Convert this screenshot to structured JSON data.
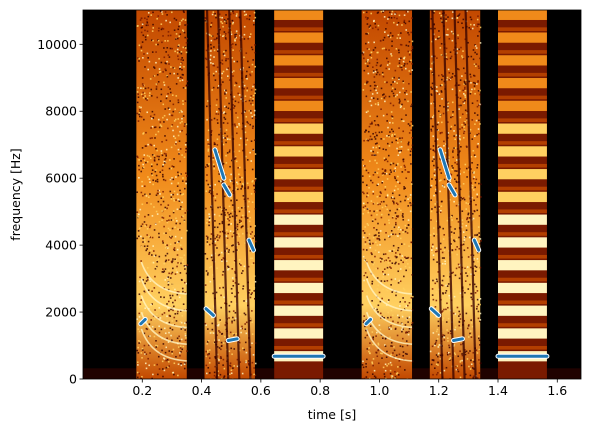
{
  "chart_data": {
    "type": "heatmap",
    "title": "",
    "xlabel": "time [s]",
    "ylabel": "frequency [Hz]",
    "xlim": [
      0.0,
      1.68
    ],
    "ylim": [
      0,
      11025
    ],
    "xticks": [
      0.2,
      0.4,
      0.6,
      0.8,
      1.0,
      1.2,
      1.4,
      1.6
    ],
    "xtick_labels": [
      "0.2",
      "0.4",
      "0.6",
      "0.8",
      "1.0",
      "1.2",
      "1.4",
      "1.6"
    ],
    "yticks": [
      0,
      2000,
      4000,
      6000,
      8000,
      10000
    ],
    "ytick_labels": [
      "0",
      "2000",
      "4000",
      "6000",
      "8000",
      "10000"
    ],
    "grid": false,
    "legend": "none",
    "colormap": [
      "#000000",
      "#3a0400",
      "#7a1a00",
      "#c24800",
      "#f08a1a",
      "#ffd060",
      "#fff4c0"
    ],
    "background_color": "#000000",
    "sound_segments": [
      {
        "kind": "noise",
        "t_start": 0.18,
        "t_end": 0.35
      },
      {
        "kind": "sweep",
        "t_start": 0.41,
        "t_end": 0.58
      },
      {
        "kind": "harmonic",
        "t_start": 0.645,
        "t_end": 0.81,
        "f0": 680
      },
      {
        "kind": "noise",
        "t_start": 0.94,
        "t_end": 1.11
      },
      {
        "kind": "sweep",
        "t_start": 1.17,
        "t_end": 1.34
      },
      {
        "kind": "harmonic",
        "t_start": 1.4,
        "t_end": 1.565,
        "f0": 680
      }
    ],
    "pitch_track_color": "#1f77b4",
    "pitch_track": [
      {
        "t": [
          0.195,
          0.21
        ],
        "f": [
          1650,
          1780
        ]
      },
      {
        "t": [
          0.415,
          0.44
        ],
        "f": [
          2100,
          1900
        ]
      },
      {
        "t": [
          0.445,
          0.475
        ],
        "f": [
          6850,
          6000
        ]
      },
      {
        "t": [
          0.475,
          0.495
        ],
        "f": [
          5800,
          5500
        ]
      },
      {
        "t": [
          0.49,
          0.52
        ],
        "f": [
          1150,
          1200
        ]
      },
      {
        "t": [
          0.56,
          0.575
        ],
        "f": [
          4150,
          3850
        ]
      },
      {
        "t": [
          0.645,
          0.81
        ],
        "f": [
          680,
          680
        ]
      },
      {
        "t": [
          0.955,
          0.97
        ],
        "f": [
          1650,
          1780
        ]
      },
      {
        "t": [
          1.175,
          1.2
        ],
        "f": [
          2100,
          1900
        ]
      },
      {
        "t": [
          1.205,
          1.235
        ],
        "f": [
          6850,
          6000
        ]
      },
      {
        "t": [
          1.235,
          1.255
        ],
        "f": [
          5800,
          5500
        ]
      },
      {
        "t": [
          1.25,
          1.28
        ],
        "f": [
          1150,
          1200
        ]
      },
      {
        "t": [
          1.32,
          1.335
        ],
        "f": [
          4150,
          3850
        ]
      },
      {
        "t": [
          1.4,
          1.565
        ],
        "f": [
          680,
          680
        ]
      }
    ]
  }
}
